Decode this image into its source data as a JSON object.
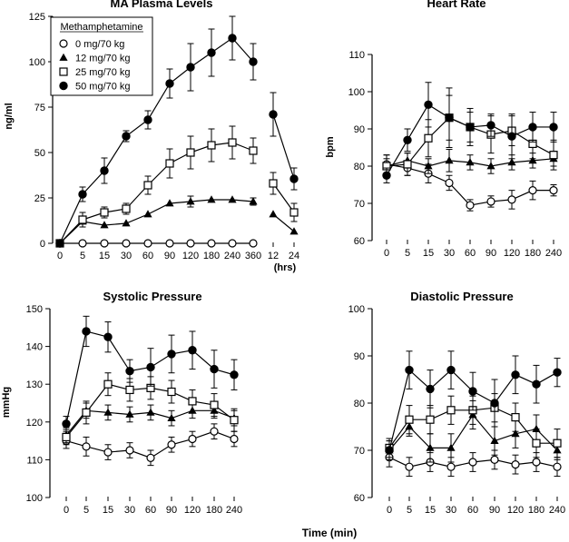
{
  "figure": {
    "xlabel": "Time (min)"
  },
  "chart_data": [
    {
      "id": "ma",
      "type": "line",
      "title": "MA Plasma Levels",
      "ylabel": "ng/ml",
      "ylim": [
        0,
        125
      ],
      "yticks": [
        0,
        25,
        50,
        75,
        100,
        125
      ],
      "categories": [
        "0",
        "5",
        "15",
        "30",
        "60",
        "90",
        "120",
        "180",
        "240",
        "360"
      ],
      "extra_categories": [
        "12",
        "24"
      ],
      "extra_unit": "(hrs)",
      "legend": {
        "title": "Methamphetamine",
        "position": "top-left",
        "entries": [
          "0 mg/70 kg",
          "12 mg/70 kg",
          "25 mg/70 kg",
          "50 mg/70 kg"
        ]
      },
      "series": [
        {
          "name": "0 mg/70 kg",
          "marker": "circle-open",
          "values": [
            0,
            0,
            0,
            0,
            0,
            0,
            0,
            0,
            0,
            0
          ],
          "errors": [
            0,
            0,
            0,
            0,
            0,
            0,
            0,
            0,
            0,
            0
          ],
          "extra_values": [],
          "extra_errors": []
        },
        {
          "name": "12 mg/70 kg",
          "marker": "triangle-filled",
          "values": [
            0,
            12,
            10,
            11,
            16,
            22,
            23,
            24,
            24,
            23
          ],
          "errors": [
            0,
            0,
            0,
            0,
            0,
            0,
            3,
            0,
            0,
            2
          ],
          "extra_values": [
            16,
            6.5
          ],
          "extra_errors": [
            0,
            0
          ]
        },
        {
          "name": "25 mg/70 kg",
          "marker": "square-open",
          "values": [
            0,
            13,
            17,
            19,
            32,
            44,
            50,
            54,
            55.5,
            51
          ],
          "errors": [
            0,
            4,
            3,
            3,
            5,
            8,
            9,
            9,
            9,
            7
          ],
          "extra_values": [
            33,
            17
          ],
          "extra_errors": [
            6,
            5
          ]
        },
        {
          "name": "50 mg/70 kg",
          "marker": "circle-filled",
          "values": [
            0,
            27,
            40,
            59,
            68,
            88,
            97,
            105,
            113,
            100
          ],
          "errors": [
            0,
            4,
            7,
            3,
            5,
            8,
            13,
            13,
            12,
            10
          ],
          "extra_values": [
            71,
            35.5
          ],
          "extra_errors": [
            12,
            6
          ]
        }
      ]
    },
    {
      "id": "hr",
      "type": "line",
      "title": "Heart Rate",
      "ylabel": "bpm",
      "ylim": [
        60,
        110
      ],
      "yticks": [
        60,
        70,
        80,
        90,
        100,
        110
      ],
      "categories": [
        "0",
        "5",
        "15",
        "30",
        "60",
        "90",
        "120",
        "180",
        "240"
      ],
      "series": [
        {
          "name": "0 mg/70 kg",
          "marker": "circle-open",
          "values": [
            80.5,
            79.5,
            78,
            75.5,
            69.5,
            70.5,
            71,
            73.5,
            73.5
          ],
          "errors": [
            2.5,
            2,
            2.5,
            2,
            1.5,
            1.5,
            2.5,
            2.5,
            1.5
          ]
        },
        {
          "name": "12 mg/70 kg",
          "marker": "triangle-filled",
          "values": [
            80,
            81.5,
            80,
            81.5,
            81,
            80,
            81,
            81.5,
            82
          ],
          "errors": [
            2,
            2,
            2,
            3,
            2,
            2,
            2,
            2,
            2
          ]
        },
        {
          "name": "25 mg/70 kg",
          "marker": "square-open",
          "values": [
            80,
            80.5,
            87.5,
            93,
            90.5,
            88.5,
            89.5,
            86,
            83
          ],
          "errors": [
            3,
            3,
            5,
            6,
            5,
            5,
            4,
            4,
            4
          ]
        },
        {
          "name": "50 mg/70 kg",
          "marker": "circle-filled",
          "values": [
            77.5,
            87,
            96.5,
            93,
            90.5,
            91,
            88,
            90.5,
            90.5
          ],
          "errors": [
            2,
            3,
            6,
            8,
            4,
            3,
            6,
            4,
            4
          ]
        }
      ]
    },
    {
      "id": "sys",
      "type": "line",
      "title": "Systolic Pressure",
      "ylabel": "mmHg",
      "ylim": [
        100,
        150
      ],
      "yticks": [
        100,
        110,
        120,
        130,
        140,
        150
      ],
      "categories": [
        "0",
        "5",
        "15",
        "30",
        "60",
        "90",
        "120",
        "180",
        "240"
      ],
      "series": [
        {
          "name": "0 mg/70 kg",
          "marker": "circle-open",
          "values": [
            115,
            113.5,
            112,
            112.5,
            110.5,
            114,
            115.5,
            117.5,
            115.5
          ],
          "errors": [
            2,
            2.5,
            2,
            2,
            2,
            2,
            2,
            2,
            2
          ]
        },
        {
          "name": "12 mg/70 kg",
          "marker": "triangle-filled",
          "values": [
            116.5,
            123,
            122.5,
            122,
            122.5,
            121,
            123,
            123,
            121
          ],
          "errors": [
            2,
            2,
            2,
            2,
            2,
            2,
            2,
            2,
            2
          ]
        },
        {
          "name": "25 mg/70 kg",
          "marker": "square-open",
          "values": [
            116,
            122.5,
            130,
            128.5,
            129,
            128,
            125.5,
            124.5,
            120.5
          ],
          "errors": [
            2,
            3,
            3,
            3,
            3,
            3,
            3,
            3,
            3
          ]
        },
        {
          "name": "50 mg/70 kg",
          "marker": "circle-filled",
          "values": [
            119.5,
            144,
            142.5,
            133.5,
            134.5,
            138,
            139,
            134,
            132.5
          ],
          "errors": [
            2,
            4,
            4,
            3,
            5,
            5,
            5,
            5,
            4
          ]
        }
      ]
    },
    {
      "id": "dia",
      "type": "line",
      "title": "Diastolic Pressure",
      "ylabel": "",
      "ylim": [
        60,
        100
      ],
      "yticks": [
        60,
        70,
        80,
        90,
        100
      ],
      "categories": [
        "0",
        "5",
        "15",
        "30",
        "60",
        "90",
        "120",
        "180",
        "240"
      ],
      "series": [
        {
          "name": "0 mg/70 kg",
          "marker": "circle-open",
          "values": [
            68.5,
            66.5,
            67.5,
            66.5,
            67.5,
            68,
            67,
            67.5,
            66.5
          ],
          "errors": [
            2,
            2,
            2,
            2,
            2,
            2,
            2,
            2,
            2
          ]
        },
        {
          "name": "12 mg/70 kg",
          "marker": "triangle-filled",
          "values": [
            70,
            75,
            70.5,
            70.5,
            77.5,
            72,
            73.5,
            74.5,
            70
          ],
          "errors": [
            2,
            2,
            3,
            3,
            3,
            3,
            3,
            3,
            2
          ]
        },
        {
          "name": "25 mg/70 kg",
          "marker": "square-open",
          "values": [
            70.5,
            76.5,
            76.5,
            78.5,
            78.5,
            79,
            77,
            71.5,
            71.5
          ],
          "errors": [
            2,
            3,
            3,
            3,
            3,
            3,
            3,
            3,
            3
          ]
        },
        {
          "name": "50 mg/70 kg",
          "marker": "circle-filled",
          "values": [
            70,
            87,
            83,
            87,
            82.5,
            80,
            86,
            84,
            86.5
          ],
          "errors": [
            2,
            4,
            4,
            4,
            4,
            5,
            4,
            4,
            3
          ]
        }
      ]
    }
  ]
}
